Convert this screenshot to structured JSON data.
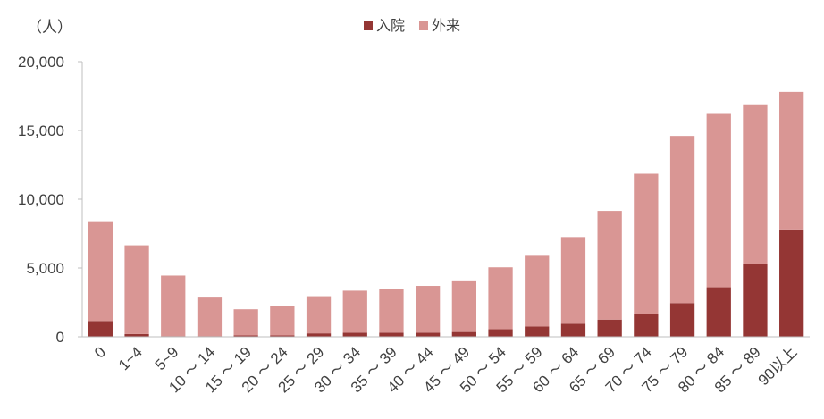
{
  "chart_data": {
    "type": "bar",
    "stacked": true,
    "unit_label": "（人）",
    "categories": [
      "0",
      "1~4",
      "5~9",
      "10 ～ 14",
      "15 ～ 19",
      "20 ～ 24",
      "25 ～ 29",
      "30 ～ 34",
      "35 ～ 39",
      "40 ～ 44",
      "45 ～ 49",
      "50 ～ 54",
      "55 ～ 59",
      "60 ～ 64",
      "65 ～ 69",
      "70 ～ 74",
      "75 ～ 79",
      "80 ～ 84",
      "85 ～ 89",
      "90以上"
    ],
    "series": [
      {
        "name": "入院",
        "color": "#943634",
        "values": [
          1150,
          200,
          50,
          50,
          100,
          100,
          250,
          300,
          300,
          300,
          350,
          550,
          750,
          950,
          1250,
          1650,
          2450,
          3600,
          5300,
          7800
        ]
      },
      {
        "name": "外来",
        "color": "#D99694",
        "values": [
          7250,
          6450,
          4400,
          2800,
          1900,
          2150,
          2700,
          3050,
          3200,
          3400,
          3750,
          4500,
          5200,
          6300,
          7900,
          10200,
          12150,
          12600,
          11600,
          10000
        ]
      }
    ],
    "yticks": [
      "0",
      "5,000",
      "10,000",
      "15,000",
      "20,000"
    ],
    "ylim": [
      0,
      20000
    ],
    "legend_position": "top-center",
    "grid": false
  }
}
